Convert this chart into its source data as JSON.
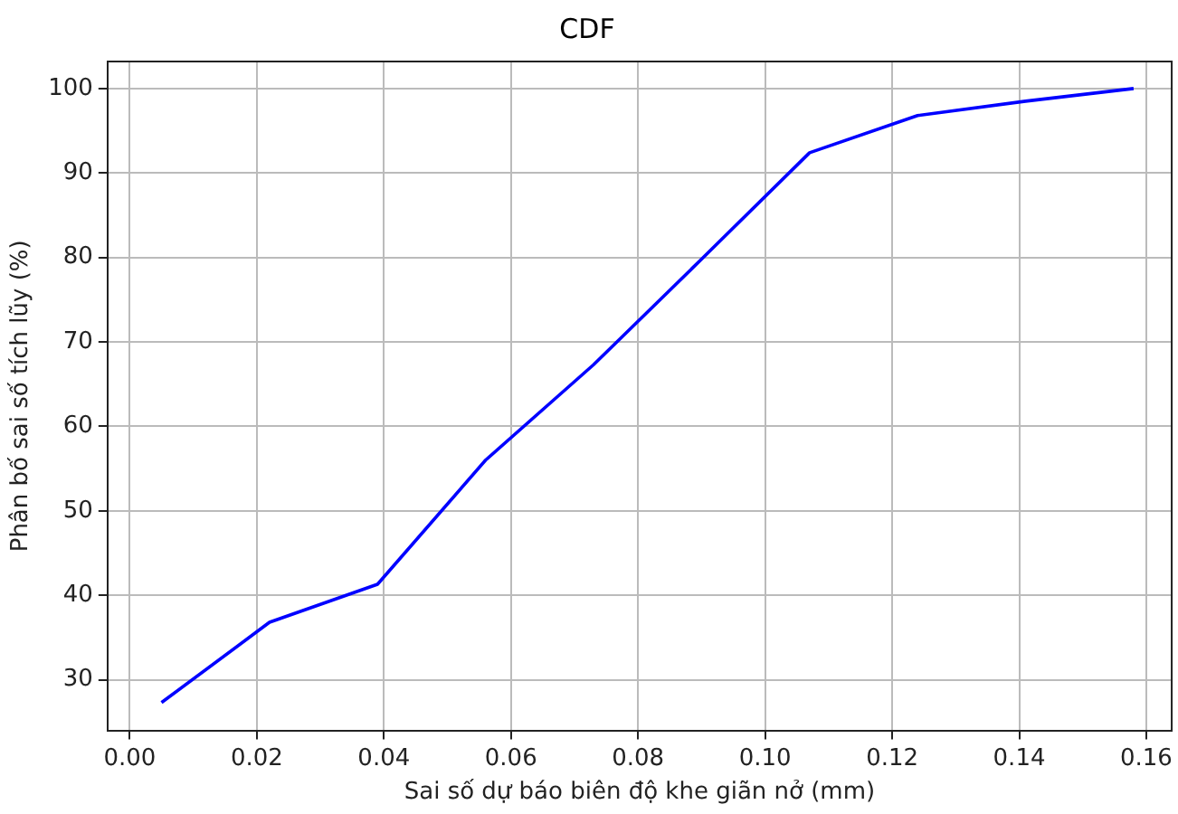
{
  "chart_data": {
    "type": "line",
    "title": "CDF",
    "xlabel": "Sai số dự báo biên độ khe giãn nở (mm)",
    "ylabel": "Phân bố sai số tích lũy (%)",
    "series": [
      {
        "color": "#0000ff",
        "x": [
          0.005,
          0.022,
          0.039,
          0.056,
          0.073,
          0.09,
          0.107,
          0.124,
          0.141,
          0.158
        ],
        "values": [
          27.3,
          36.8,
          41.3,
          56,
          67.3,
          79.8,
          92.4,
          96.8,
          98.5,
          100
        ]
      }
    ],
    "xlim": [
      -0.0035,
      0.164
    ],
    "xticks": [
      {
        "value": 0,
        "label": "0.00"
      },
      {
        "value": 0.02,
        "label": "0.02"
      },
      {
        "value": 0.04,
        "label": "0.04"
      },
      {
        "value": 0.06,
        "label": "0.06"
      },
      {
        "value": 0.08,
        "label": "0.08"
      },
      {
        "value": 0.1,
        "label": "0.10"
      },
      {
        "value": 0.12,
        "label": "0.12"
      },
      {
        "value": 0.14,
        "label": "0.14"
      },
      {
        "value": 0.16,
        "label": "0.16"
      }
    ],
    "ylim": [
      24,
      103.2
    ],
    "yticks": [
      30,
      40,
      50,
      60,
      70,
      80,
      90,
      100
    ],
    "grid": true,
    "legend": false,
    "marker": "none",
    "line_style": "solid"
  }
}
